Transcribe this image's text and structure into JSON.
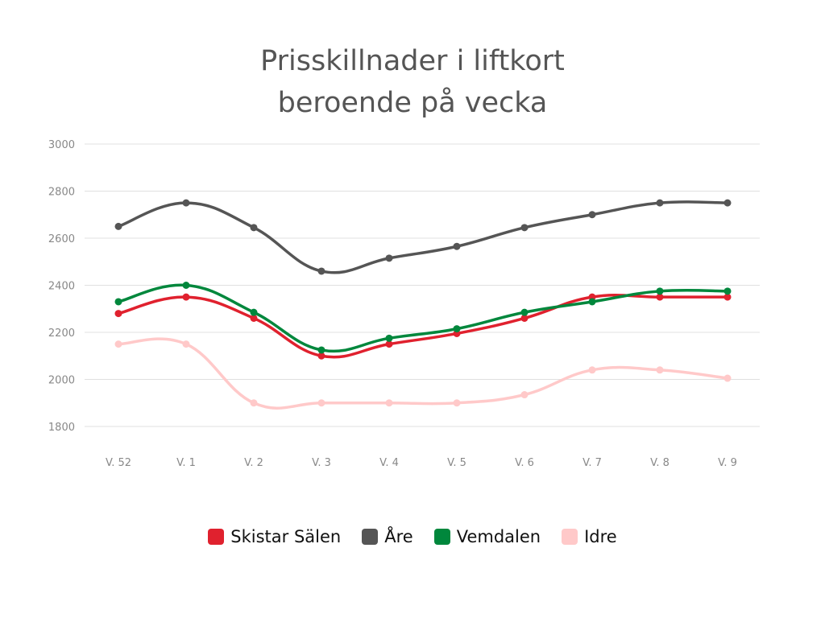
{
  "chart_data": {
    "type": "line",
    "title": [
      "Prisskillnader i liftkort",
      "beroende på vecka"
    ],
    "xlabel": "",
    "ylabel": "",
    "categories": [
      "V. 52",
      "V. 1",
      "V. 2",
      "V. 3",
      "V. 4",
      "V. 5",
      "V. 6",
      "V. 7",
      "V. 8",
      "V. 9"
    ],
    "ylim": [
      1800,
      3000
    ],
    "yticks": [
      1800,
      2000,
      2200,
      2400,
      2600,
      2800,
      3000
    ],
    "grid": true,
    "smooth": true,
    "legend_position": "bottom",
    "series": [
      {
        "name": "Skistar Sälen",
        "color": "#e0212e",
        "values": [
          2280,
          2350,
          2260,
          2100,
          2150,
          2195,
          2260,
          2350,
          2350,
          2350
        ]
      },
      {
        "name": "Åre",
        "color": "#555555",
        "values": [
          2650,
          2750,
          2645,
          2460,
          2515,
          2565,
          2645,
          2700,
          2750,
          2750
        ]
      },
      {
        "name": "Vemdalen",
        "color": "#00873c",
        "values": [
          2330,
          2400,
          2285,
          2125,
          2175,
          2215,
          2285,
          2330,
          2375,
          2375
        ]
      },
      {
        "name": "Idre",
        "color": "#ffc9c9",
        "values": [
          2150,
          2150,
          1900,
          1900,
          1900,
          1900,
          1935,
          2040,
          2040,
          2005
        ]
      }
    ]
  }
}
